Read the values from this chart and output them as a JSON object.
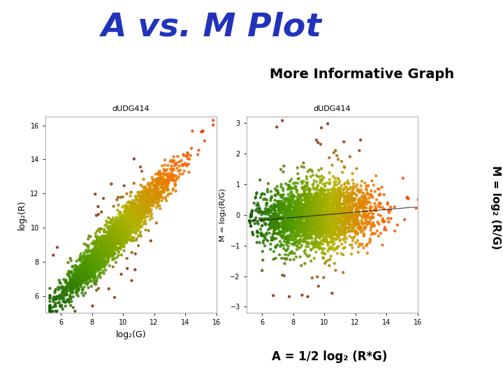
{
  "title": "A vs. M Plot",
  "title_color": "#2233BB",
  "title_fontsize": 34,
  "subtitle": "More Informative Graph",
  "subtitle_fontsize": 14,
  "plot1_title": "dUDG414",
  "plot2_title": "dUDG414",
  "plot1_xlabel": "log₂(G)",
  "plot1_ylabel": "log₂(R)",
  "plot2_ylabel": "M = log₂(R/G)",
  "right_ylabel": "M = log₂ (R/G)",
  "bottom_xlabel": "A = 1/2 log₂ (R*G)",
  "bg_color": "#ffffff",
  "seed": 42,
  "n_points": 3000,
  "plot1_xlim": [
    5.0,
    16.0
  ],
  "plot1_ylim": [
    5.0,
    16.5
  ],
  "plot2_xlim": [
    5.0,
    16.0
  ],
  "plot2_ylim": [
    -3.2,
    3.2
  ],
  "plot1_xticks": [
    6,
    8,
    10,
    12,
    14,
    16
  ],
  "plot1_yticks": [
    6,
    8,
    10,
    12,
    14,
    16
  ],
  "plot2_xticks": [
    6,
    8,
    10,
    12,
    14,
    16
  ],
  "plot2_yticks": [
    -3,
    -2,
    -1,
    0,
    1,
    2,
    3
  ]
}
